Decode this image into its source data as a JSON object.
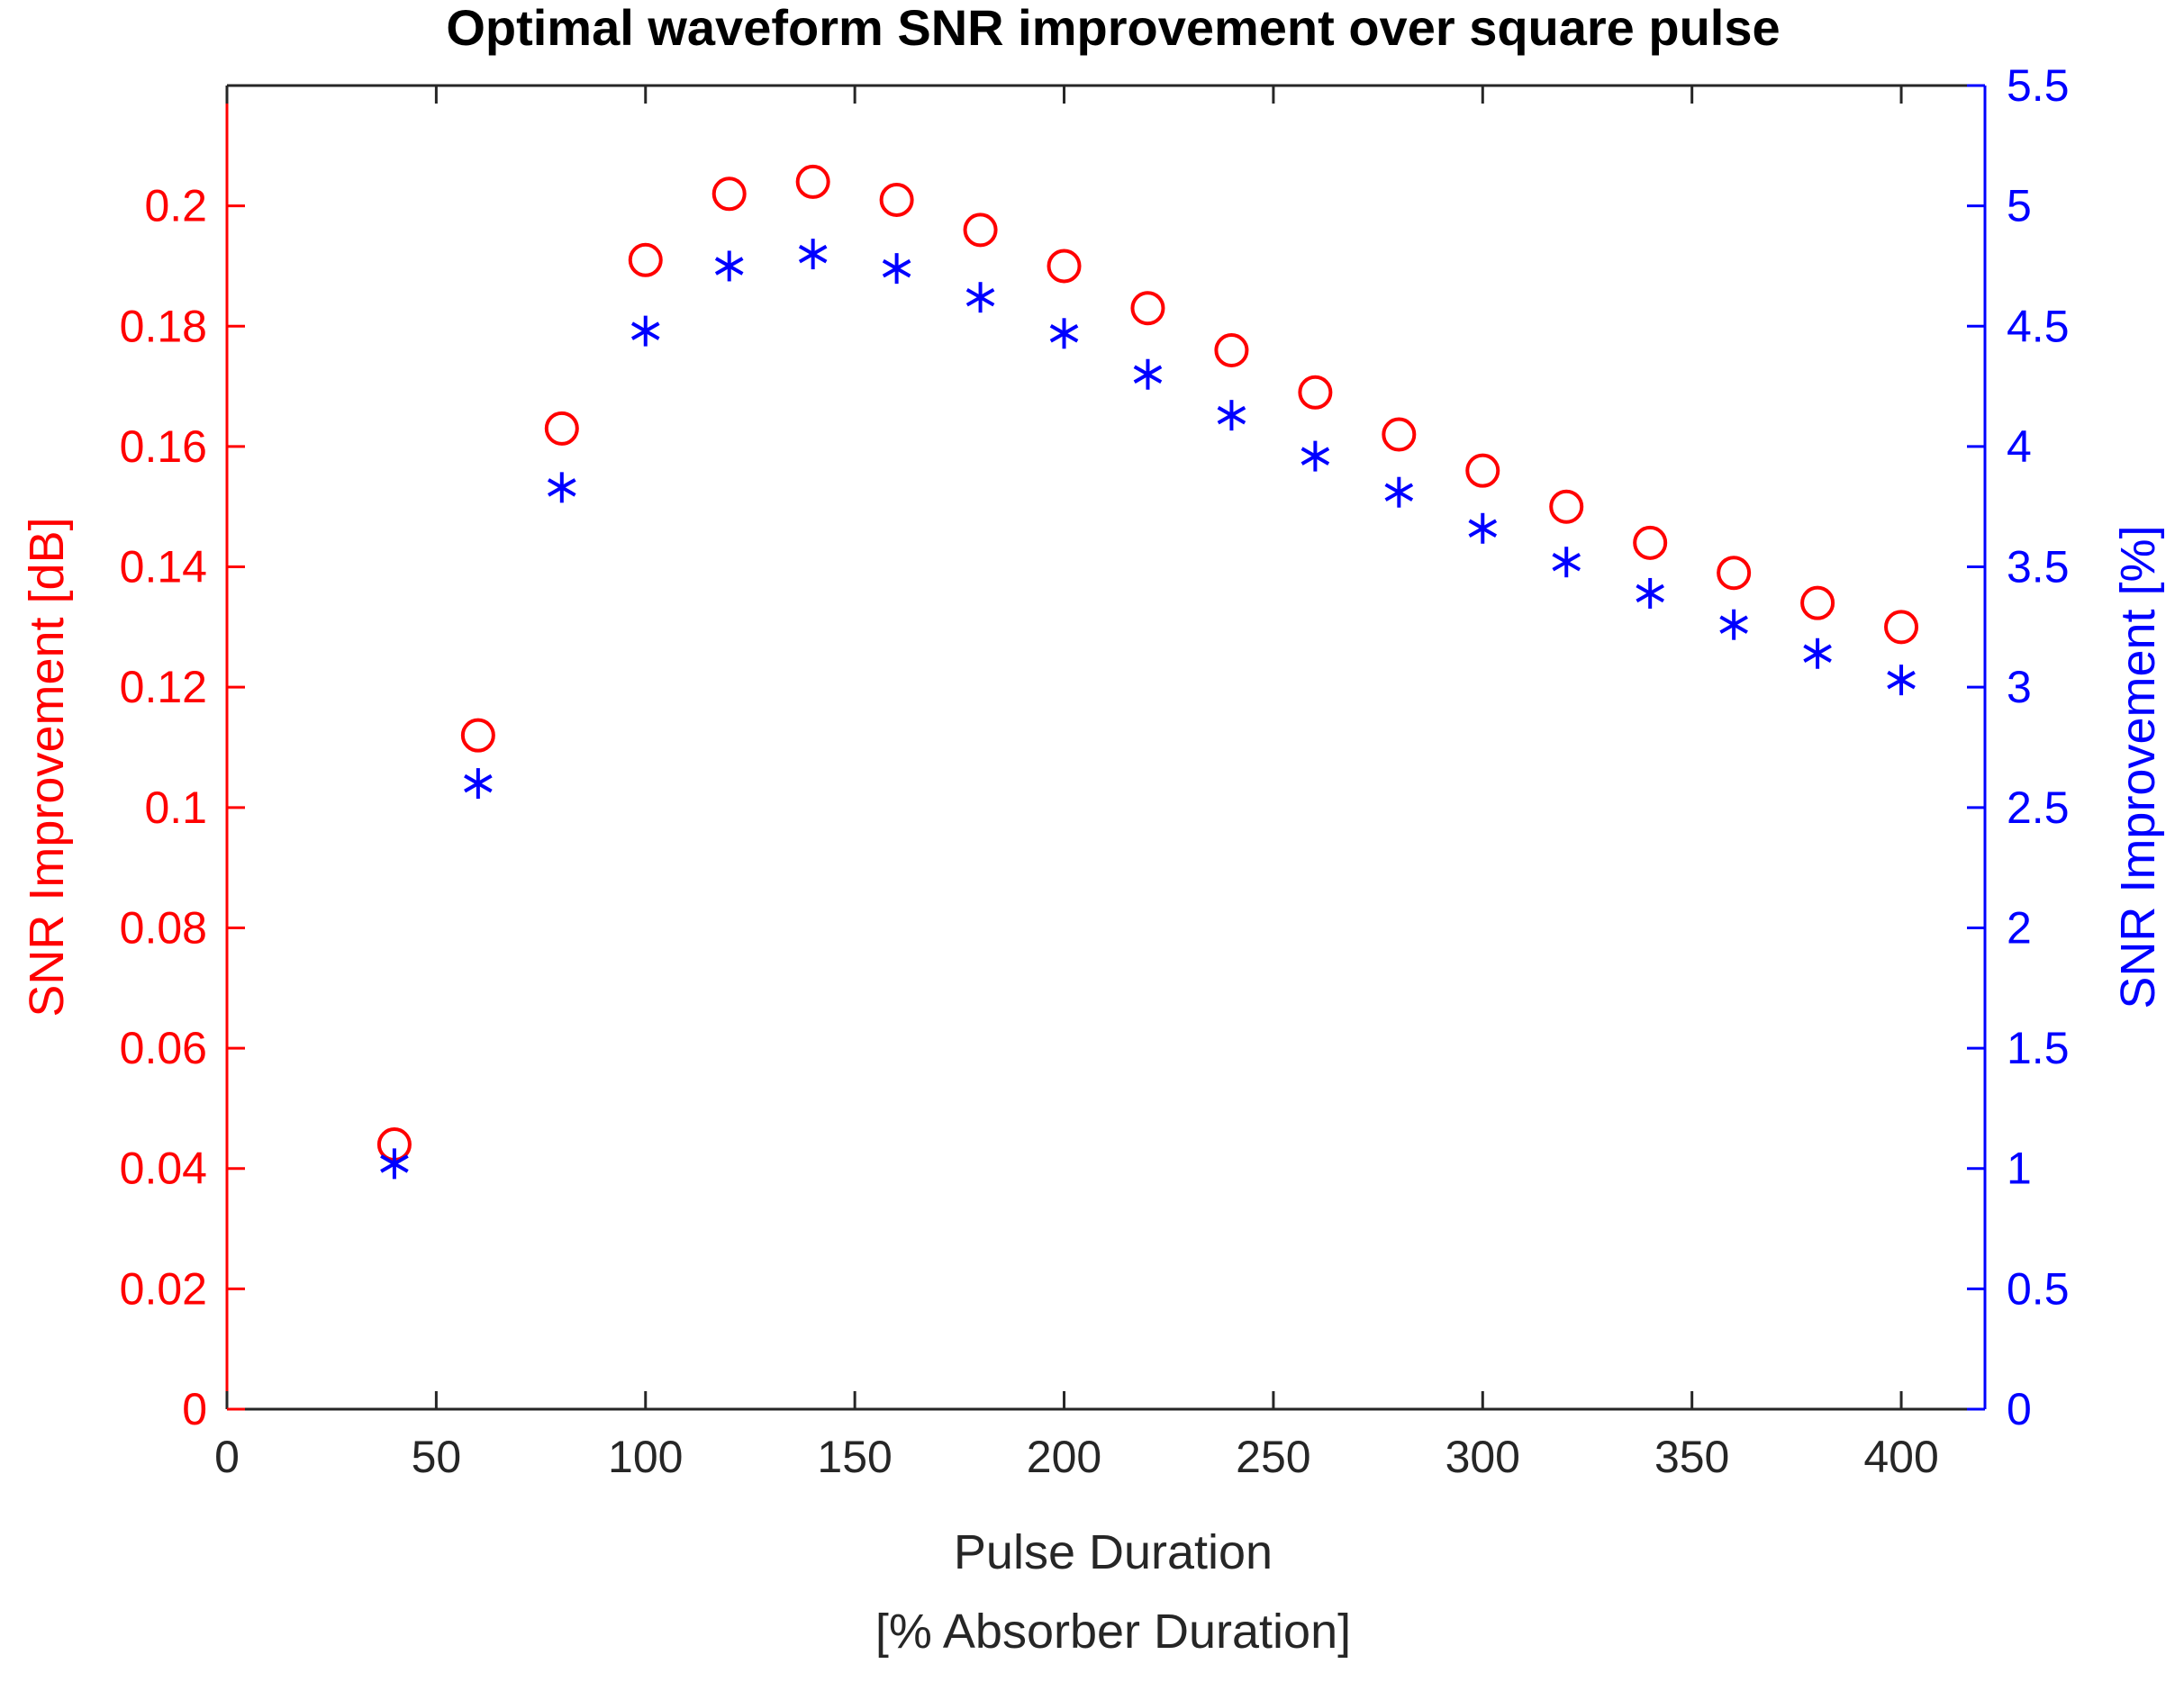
{
  "chart_data": {
    "type": "scatter",
    "title": "Optimal waveform SNR improvement over square pulse",
    "xlabel": [
      "Pulse Duration",
      "[% Absorber Duration]"
    ],
    "ylabel_left": "SNR Improvement [dB]",
    "ylabel_right": "SNR Improvement [%]",
    "xlim": [
      0,
      420
    ],
    "ylim_left": [
      0,
      0.22
    ],
    "ylim_right": [
      0,
      5.5
    ],
    "xticks": [
      "0",
      "50",
      "100",
      "150",
      "200",
      "250",
      "300",
      "350",
      "400"
    ],
    "xtick_values": [
      0,
      50,
      100,
      150,
      200,
      250,
      300,
      350,
      400
    ],
    "yticks_left": [
      "0",
      "0.02",
      "0.04",
      "0.06",
      "0.08",
      "0.1",
      "0.12",
      "0.14",
      "0.16",
      "0.18",
      "0.2"
    ],
    "ytick_values_left": [
      0,
      0.02,
      0.04,
      0.06,
      0.08,
      0.1,
      0.12,
      0.14,
      0.16,
      0.18,
      0.2
    ],
    "yticks_right": [
      "0",
      "0.5",
      "1",
      "1.5",
      "2",
      "2.5",
      "3",
      "3.5",
      "4",
      "4.5",
      "5",
      "5.5"
    ],
    "ytick_values_right": [
      0,
      0.5,
      1,
      1.5,
      2,
      2.5,
      3,
      3.5,
      4,
      4.5,
      5,
      5.5
    ],
    "grid": false,
    "x": [
      40,
      60,
      80,
      100,
      120,
      140,
      160,
      180,
      200,
      220,
      240,
      260,
      280,
      300,
      320,
      340,
      360,
      380,
      400
    ],
    "series": [
      {
        "axis": "left",
        "marker": "circle",
        "color": "#ff0000",
        "values": [
          0.044,
          0.112,
          0.163,
          0.191,
          0.202,
          0.204,
          0.201,
          0.196,
          0.19,
          0.183,
          0.176,
          0.169,
          0.162,
          0.156,
          0.15,
          0.144,
          0.139,
          0.134,
          0.13
        ]
      },
      {
        "axis": "right",
        "marker": "asterisk",
        "color": "#0000ff",
        "values": [
          1.02,
          2.6,
          3.83,
          4.48,
          4.75,
          4.8,
          4.74,
          4.62,
          4.47,
          4.3,
          4.13,
          3.96,
          3.81,
          3.66,
          3.52,
          3.39,
          3.26,
          3.14,
          3.03
        ]
      }
    ]
  }
}
